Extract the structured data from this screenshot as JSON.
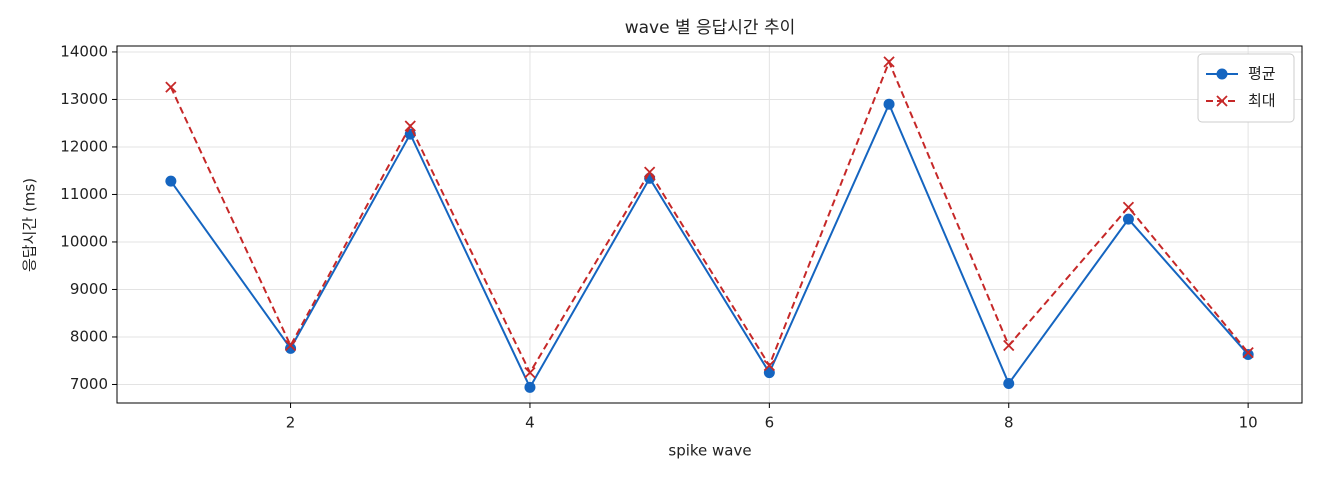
{
  "chart_data": {
    "type": "line",
    "title": "wave 별 응답시간 추이",
    "xlabel": "spike wave",
    "ylabel": "응답시간 (ms)",
    "x": [
      1,
      2,
      3,
      4,
      5,
      6,
      7,
      8,
      9,
      10
    ],
    "series": [
      {
        "name": "평균",
        "color": "#1565c0",
        "marker": "circle",
        "linestyle": "solid",
        "values": [
          11280,
          7760,
          12270,
          6940,
          11340,
          7250,
          12900,
          7020,
          10480,
          7630
        ]
      },
      {
        "name": "최대",
        "color": "#c62828",
        "marker": "x",
        "linestyle": "dashed",
        "values": [
          13260,
          7820,
          12440,
          7250,
          11470,
          7400,
          13790,
          7820,
          10730,
          7670
        ]
      }
    ],
    "xlim": [
      0.55,
      10.45
    ],
    "ylim": [
      6610,
      14125
    ],
    "xticks": [
      2,
      4,
      6,
      8,
      10
    ],
    "yticks": [
      7000,
      8000,
      9000,
      10000,
      11000,
      12000,
      13000,
      14000
    ],
    "grid": true,
    "legend": "upper right"
  }
}
